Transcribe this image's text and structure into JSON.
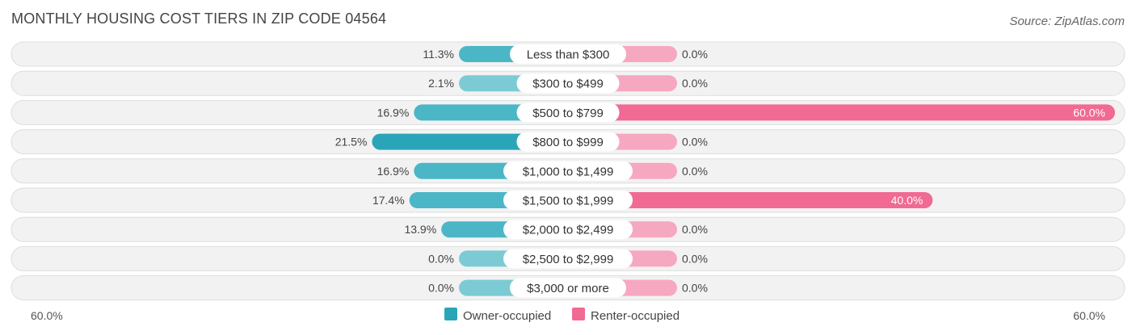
{
  "title": "MONTHLY HOUSING COST TIERS IN ZIP CODE 04564",
  "source": "Source: ZipAtlas.com",
  "colors": {
    "owner_light": "#7ccbd4",
    "owner_dark": "#2aa5b7",
    "renter_light": "#f6a8c0",
    "renter_dark": "#f06a93",
    "row_bg": "#f2f2f2",
    "row_border": "#dddddd"
  },
  "chart_data": {
    "type": "bar",
    "orientation": "diverging-horizontal",
    "categories": [
      "Less than $300",
      "$300 to $499",
      "$500 to $799",
      "$800 to $999",
      "$1,000 to $1,499",
      "$1,500 to $1,999",
      "$2,000 to $2,499",
      "$2,500 to $2,999",
      "$3,000 or more"
    ],
    "series": [
      {
        "name": "Owner-occupied",
        "values": [
          11.3,
          2.1,
          16.9,
          21.5,
          16.9,
          17.4,
          13.9,
          0.0,
          0.0
        ],
        "labels": [
          "11.3%",
          "2.1%",
          "16.9%",
          "21.5%",
          "16.9%",
          "17.4%",
          "13.9%",
          "0.0%",
          "0.0%"
        ]
      },
      {
        "name": "Renter-occupied",
        "values": [
          0.0,
          0.0,
          60.0,
          0.0,
          0.0,
          40.0,
          0.0,
          0.0,
          0.0
        ],
        "labels": [
          "0.0%",
          "0.0%",
          "60.0%",
          "0.0%",
          "0.0%",
          "40.0%",
          "0.0%",
          "0.0%",
          "0.0%"
        ]
      }
    ],
    "xlim": [
      -60,
      60
    ],
    "axis_labels": {
      "left": "60.0%",
      "right": "60.0%"
    },
    "legend_position": "bottom-center"
  }
}
